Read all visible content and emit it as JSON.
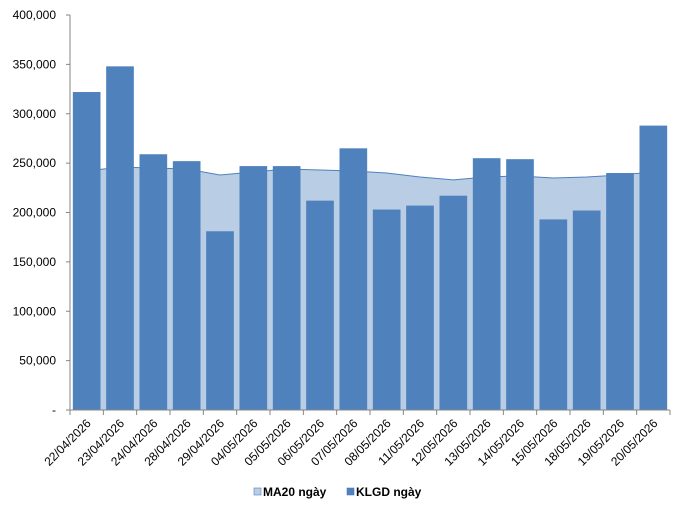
{
  "chart_data": {
    "type": "bar",
    "title": "",
    "xlabel": "",
    "ylabel": "",
    "ylim": [
      0,
      400000
    ],
    "yticks": [
      0,
      50000,
      100000,
      150000,
      200000,
      250000,
      300000,
      350000,
      400000
    ],
    "ytick_labels": [
      "-",
      "50,000",
      "100,000",
      "150,000",
      "200,000",
      "250,000",
      "300,000",
      "350,000",
      "400,000"
    ],
    "categories": [
      "22/04/2026",
      "23/04/2026",
      "24/04/2026",
      "28/04/2026",
      "29/04/2026",
      "04/05/2026",
      "05/05/2026",
      "06/05/2026",
      "07/05/2026",
      "08/05/2026",
      "11/05/2026",
      "12/05/2026",
      "13/05/2026",
      "14/05/2026",
      "15/05/2026",
      "18/05/2026",
      "19/05/2026",
      "20/05/2026"
    ],
    "series": [
      {
        "name": "MA20 ngày",
        "kind": "area",
        "color": "#B9CDE5",
        "line_color": "#4F81BD",
        "values": [
          242000,
          246000,
          245000,
          244000,
          238000,
          241000,
          244000,
          243000,
          242000,
          240000,
          236000,
          233000,
          236000,
          237000,
          235000,
          236000,
          238000,
          241000
        ]
      },
      {
        "name": "KLGD ngày",
        "kind": "bar",
        "color": "#4F81BD",
        "values": [
          322000,
          348000,
          259000,
          252000,
          181000,
          247000,
          247000,
          212000,
          265000,
          203000,
          207000,
          217000,
          255000,
          254000,
          193000,
          202000,
          240000,
          288000
        ]
      }
    ],
    "grid": false,
    "legend": "bottom",
    "legend_labels": [
      "MA20 ngày",
      "KLGD ngày"
    ]
  }
}
